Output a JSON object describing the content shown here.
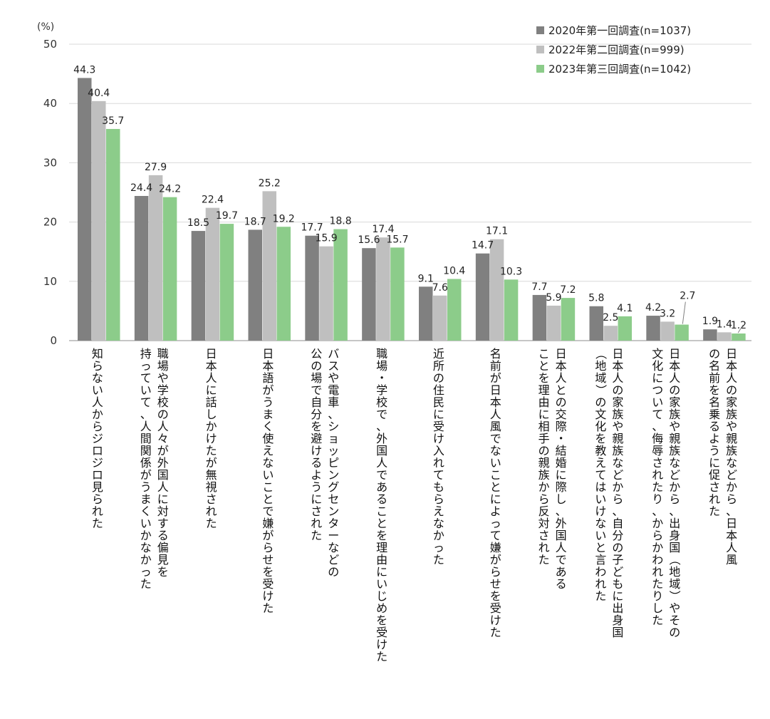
{
  "chart_data": {
    "type": "bar",
    "unit_label": "(%)",
    "ylim": [
      0,
      50
    ],
    "yticks": [
      "0",
      "10",
      "20",
      "30",
      "40",
      "50"
    ],
    "grid": true,
    "legend_position": "top-right",
    "series": [
      {
        "name": "2020年第一回調査(n=1037)",
        "color": "#808080",
        "values": [
          44.3,
          24.4,
          18.5,
          18.7,
          17.7,
          15.6,
          9.1,
          14.7,
          7.7,
          5.8,
          4.2,
          1.9
        ]
      },
      {
        "name": "2022年第二回調査(n=999)",
        "color": "#bfbfbf",
        "values": [
          40.4,
          27.9,
          22.4,
          25.2,
          15.9,
          17.4,
          7.6,
          17.1,
          5.9,
          2.5,
          3.2,
          1.4
        ]
      },
      {
        "name": "2023年第三回調査(n=1042)",
        "color": "#8ccc8a",
        "values": [
          35.7,
          24.2,
          19.7,
          19.2,
          18.8,
          15.7,
          10.4,
          10.3,
          7.2,
          4.1,
          2.7,
          1.2
        ]
      }
    ],
    "categories": [
      [
        "知らない人からジロジロ見られた"
      ],
      [
        "職場や学校の人々が外国人に対する偏見を",
        "持っていて、人間関係がうまくいかなかった"
      ],
      [
        "日本人に話しかけたが無視された"
      ],
      [
        "日本語がうまく使えないことで嫌がらせを受けた"
      ],
      [
        "バスや電車、ショッピングセンターなどの",
        "公の場で自分を避けるようにされた"
      ],
      [
        "職場・学校で、外国人であることを理由にいじめを受けた"
      ],
      [
        "近所の住民に受け入れてもらえなかった"
      ],
      [
        "名前が日本人風でないことによって嫌がらせを受けた"
      ],
      [
        "日本人との交際・結婚に際し、外国人である",
        "ことを理由に相手の親族から反対された"
      ],
      [
        "日本人の家族や親族などから、自分の子どもに出身国",
        "（地域）の文化を教えてはいけないと言われた"
      ],
      [
        "日本人の家族や親族などから、出身国（地域）やその",
        "文化について、侮辱されたり、からかわれたりした"
      ],
      [
        "日本人の家族や親族などから、日本人風",
        "の名前を名乗るように促された"
      ]
    ]
  }
}
